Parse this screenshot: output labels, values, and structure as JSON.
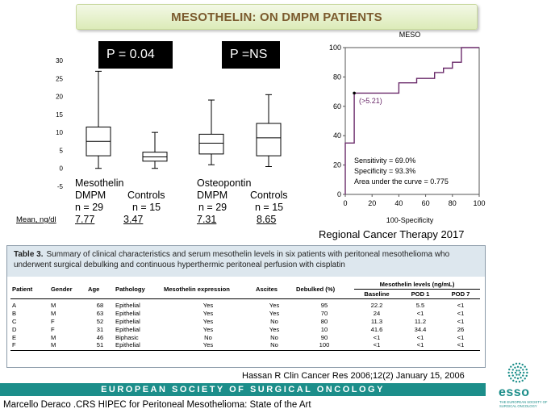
{
  "title": "MESOTHELIN: ON DMPM PATIENTS",
  "boxplot": {
    "p_value_mesothelin": "P = 0.04",
    "p_value_osteopontin": "P =NS",
    "groups": [
      {
        "marker": "Mesothelin",
        "left": "DMPM",
        "right": "Controls",
        "n_left": "n = 29",
        "n_right": "n = 15",
        "mean_left": "7.77",
        "mean_right": "3.47"
      },
      {
        "marker": "Osteopontin",
        "left": "DMPM",
        "right": "Controls",
        "n_left": "n = 29",
        "n_right": "n = 15",
        "mean_left": "7.31",
        "mean_right": "8.65"
      }
    ],
    "mean_label": "Mean, ng/dl"
  },
  "chart_data": [
    {
      "type": "box",
      "ylim": [
        -5,
        30
      ],
      "y_ticks": [
        -5,
        0,
        5,
        10,
        15,
        20,
        25,
        30
      ],
      "boxes": [
        {
          "group": "Mesothelin DMPM",
          "min": 0,
          "q1": 3.5,
          "median": 7.5,
          "q3": 11.5,
          "max": 27
        },
        {
          "group": "Mesothelin Controls",
          "min": 0,
          "q1": 2,
          "median": 3.2,
          "q3": 4.5,
          "max": 10
        },
        {
          "group": "Osteopontin DMPM",
          "min": 1,
          "q1": 4,
          "median": 7,
          "q3": 9.5,
          "max": 19
        },
        {
          "group": "Osteopontin Controls",
          "min": 0.5,
          "q1": 3.5,
          "median": 8.5,
          "q3": 12.5,
          "max": 20.5
        }
      ]
    },
    {
      "type": "line",
      "title": "MESO",
      "xlabel": "100-Specificity",
      "xlim": [
        0,
        100
      ],
      "ylim": [
        0,
        100
      ],
      "x_ticks": [
        0,
        20,
        40,
        60,
        80,
        100
      ],
      "y_ticks": [
        0,
        20,
        40,
        60,
        80,
        100
      ],
      "x": [
        0,
        0,
        6.7,
        6.7,
        13.3,
        13.3,
        40,
        40,
        53.3,
        53.3,
        66.7,
        66.7,
        73.3,
        73.3,
        80,
        80,
        86.7,
        86.7,
        100
      ],
      "y": [
        0,
        35,
        35,
        69,
        69,
        69,
        69,
        76,
        76,
        79,
        79,
        83,
        83,
        86,
        86,
        90,
        90,
        100,
        100
      ],
      "annotation": "(>5.21)",
      "stats": [
        "Sensitivity = 69.0%",
        "Specificity = 93.3%",
        "Area under the curve = 0.775"
      ]
    }
  ],
  "citation_roc": "Regional Cancer Therapy 2017",
  "table": {
    "caption_label": "Table 3.",
    "caption_text": "Summary of clinical characteristics and serum mesothelin levels in six patients with peritoneal mesothelioma who underwent surgical debulking and continuous hyperthermic peritoneal perfusion with cisplatin",
    "headers": [
      "Patient",
      "Gender",
      "Age",
      "Pathology",
      "Mesothelin expression",
      "Ascites",
      "Debulked (%)",
      "Mesothelin levels (ng/mL)"
    ],
    "subheaders": [
      "Baseline",
      "POD 1",
      "POD 7"
    ],
    "rows": [
      [
        "A",
        "M",
        "68",
        "Epithelial",
        "Yes",
        "Yes",
        "95",
        "22.2",
        "5.5",
        "<1"
      ],
      [
        "B",
        "M",
        "63",
        "Epithelial",
        "Yes",
        "Yes",
        "70",
        "24",
        "<1",
        "<1"
      ],
      [
        "C",
        "F",
        "52",
        "Epithelial",
        "Yes",
        "No",
        "80",
        "11.3",
        "11.2",
        "<1"
      ],
      [
        "D",
        "F",
        "31",
        "Epithelial",
        "Yes",
        "Yes",
        "10",
        "41.6",
        "34.4",
        "26"
      ],
      [
        "E",
        "M",
        "46",
        "Biphasic",
        "No",
        "No",
        "90",
        "<1",
        "<1",
        "<1"
      ],
      [
        "F",
        "M",
        "51",
        "Epithelial",
        "Yes",
        "No",
        "100",
        "<1",
        "<1",
        "<1"
      ]
    ]
  },
  "citation_table": "Hassan R Clin Cancer Res 2006;12(2) January 15, 2006",
  "footer": {
    "society": "EUROPEAN SOCIETY OF SURGICAL ONCOLOGY",
    "presenter": "Marcello Deraco .CRS HIPEC for Peritoneal Mesothelioma: State of the Art"
  },
  "logo": {
    "word": "esso",
    "sub": "THE EUROPEAN SOCIETY OF SURGICAL ONCOLOGY"
  },
  "colors": {
    "accent": "#1c8e8a",
    "title": "#7b5a2e",
    "roc_line": "#6a2a6a"
  },
  "icons": {
    "logo": "esso-logo-icon"
  }
}
